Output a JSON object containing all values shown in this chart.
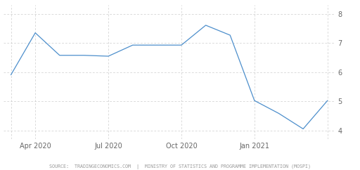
{
  "x_values": [
    0,
    1,
    2,
    3,
    4,
    5,
    6,
    7,
    8,
    9,
    10,
    11,
    12,
    13
  ],
  "y_values": [
    5.91,
    7.35,
    6.58,
    6.58,
    6.55,
    6.93,
    6.93,
    6.93,
    7.61,
    7.27,
    5.03,
    4.59,
    4.06,
    5.03
  ],
  "x_tick_positions_display": [
    1,
    4,
    7,
    10
  ],
  "x_tick_labels_display": [
    "Apr 2020",
    "Jul 2020",
    "Oct 2020",
    "Jan 2021"
  ],
  "x_grid_positions": [
    0,
    1,
    4,
    7,
    10,
    13
  ],
  "y_ticks": [
    4,
    5,
    6,
    7,
    8
  ],
  "ylim": [
    3.7,
    8.3
  ],
  "xlim": [
    -0.3,
    13.3
  ],
  "line_color": "#4d8fcc",
  "grid_color": "#cccccc",
  "background_color": "#ffffff",
  "source_text": "SOURCE:  TRADINGECONOMICS.COM  |  MINISTRY OF STATISTICS AND PROGRAMME IMPLEMENTATION (MOSPI)",
  "source_fontsize": 4.8,
  "tick_fontsize": 7.0
}
